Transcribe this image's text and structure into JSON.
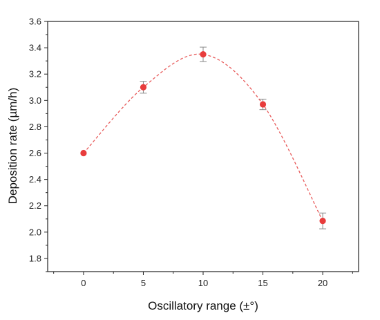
{
  "chart_data": {
    "type": "scatter",
    "title": "",
    "xlabel": "Oscillatory range (±°)",
    "ylabel": "Deposition rate (µm/h)",
    "xlim": [
      -3,
      23
    ],
    "ylim": [
      1.7,
      3.6
    ],
    "xticks": [
      0,
      5,
      10,
      15,
      20
    ],
    "xtick_labels": [
      "0",
      "5",
      "10",
      "15",
      "20"
    ],
    "yticks": [
      1.8,
      2.0,
      2.2,
      2.4,
      2.6,
      2.8,
      3.0,
      3.2,
      3.4,
      3.6
    ],
    "ytick_labels": [
      "1.8",
      "2.0",
      "2.2",
      "2.4",
      "2.6",
      "2.8",
      "3.0",
      "3.2",
      "3.4",
      "3.6"
    ],
    "grid": false,
    "legend": "none",
    "series": [
      {
        "x": [
          0,
          5,
          10,
          15,
          20
        ],
        "y": [
          2.6,
          3.1,
          3.35,
          2.97,
          2.085
        ],
        "yerr": [
          0.0,
          0.045,
          0.055,
          0.04,
          0.06
        ],
        "marker_color": "#e83c3c",
        "fit_line": "dashed",
        "fit_color": "#e85a5a"
      }
    ]
  }
}
